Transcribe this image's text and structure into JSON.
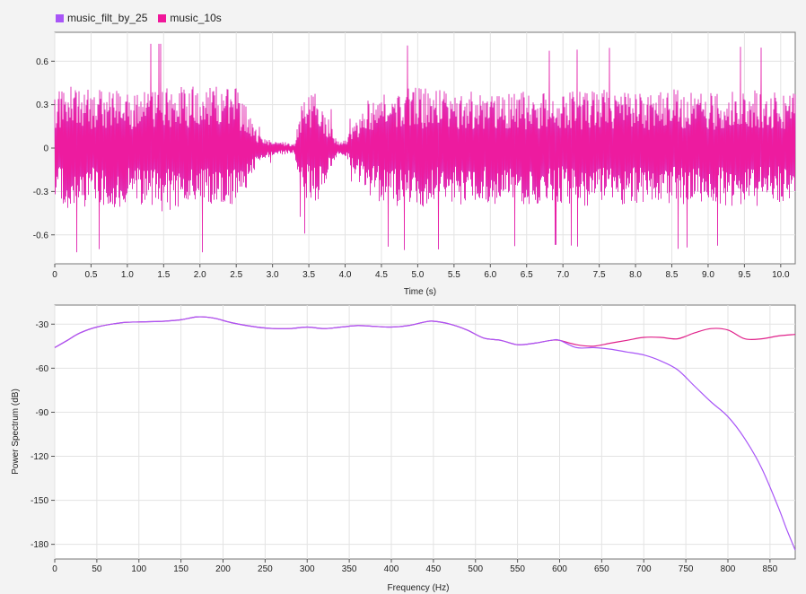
{
  "legend": {
    "items": [
      {
        "label": "music_filt_by_25",
        "color": "#a855f7"
      },
      {
        "label": "music_10s",
        "color": "#f0179a"
      }
    ]
  },
  "chart_data": [
    {
      "type": "line",
      "title": "",
      "xlabel": "Time (s)",
      "ylabel": "",
      "xlim": [
        0,
        10.2
      ],
      "ylim": [
        -0.8,
        0.8
      ],
      "xticks": [
        "0",
        "0.5",
        "1.0",
        "1.5",
        "2.0",
        "2.5",
        "3.0",
        "3.5",
        "4.0",
        "4.5",
        "5.0",
        "5.5",
        "6.0",
        "6.5",
        "7.0",
        "7.5",
        "8.0",
        "8.5",
        "9.0",
        "9.5",
        "10.0"
      ],
      "yticks": [
        "0.6",
        "0.3",
        "0",
        "-0.3",
        "-0.6"
      ],
      "grid": true,
      "legend_position": "top-left",
      "series": [
        {
          "name": "music_filt_by_25",
          "color": "#a855f7",
          "envelope_t": [
            0,
            0.3,
            0.5,
            0.8,
            1.0,
            1.2,
            1.5,
            1.8,
            2.0,
            2.3,
            2.5,
            2.7,
            2.8,
            3.0,
            3.3,
            3.4,
            3.6,
            3.8,
            3.9,
            4.0,
            4.3,
            4.6,
            5.0,
            5.5,
            6.0,
            6.5,
            7.0,
            7.5,
            8.0,
            8.5,
            9.0,
            9.5,
            10.0,
            10.2
          ],
          "envelope_amp": [
            0.35,
            0.4,
            0.36,
            0.38,
            0.36,
            0.37,
            0.4,
            0.38,
            0.4,
            0.38,
            0.4,
            0.2,
            0.08,
            0.05,
            0.03,
            0.3,
            0.35,
            0.15,
            0.04,
            0.05,
            0.3,
            0.36,
            0.38,
            0.36,
            0.35,
            0.36,
            0.35,
            0.37,
            0.35,
            0.37,
            0.35,
            0.37,
            0.36,
            0.36
          ]
        },
        {
          "name": "music_10s",
          "color": "#f0179a",
          "envelope_t": [
            0,
            0.3,
            0.5,
            0.8,
            1.0,
            1.2,
            1.5,
            1.8,
            2.0,
            2.3,
            2.5,
            2.7,
            2.8,
            3.0,
            3.3,
            3.4,
            3.6,
            3.8,
            3.9,
            4.0,
            4.3,
            4.6,
            5.0,
            5.5,
            6.0,
            6.5,
            7.0,
            7.5,
            8.0,
            8.5,
            9.0,
            9.5,
            10.0,
            10.2
          ],
          "envelope_amp": [
            0.35,
            0.4,
            0.36,
            0.38,
            0.36,
            0.37,
            0.4,
            0.38,
            0.4,
            0.38,
            0.4,
            0.2,
            0.08,
            0.05,
            0.03,
            0.3,
            0.35,
            0.15,
            0.04,
            0.05,
            0.3,
            0.36,
            0.38,
            0.36,
            0.35,
            0.36,
            0.35,
            0.37,
            0.35,
            0.37,
            0.35,
            0.37,
            0.36,
            0.36
          ]
        }
      ]
    },
    {
      "type": "line",
      "title": "",
      "xlabel": "Frequency (Hz)",
      "ylabel": "Power Spectrum (dB)",
      "xlim": [
        0,
        880
      ],
      "ylim": [
        -190,
        -17
      ],
      "xticks": [
        "0",
        "50",
        "100",
        "150",
        "200",
        "250",
        "300",
        "350",
        "400",
        "450",
        "500",
        "550",
        "600",
        "650",
        "700",
        "750",
        "800",
        "850"
      ],
      "yticks": [
        "-30",
        "-60",
        "-90",
        "-120",
        "-150",
        "-180"
      ],
      "grid": true,
      "series": [
        {
          "name": "music_10s",
          "color": "#e0218a",
          "x": [
            0,
            15,
            30,
            50,
            80,
            100,
            130,
            150,
            170,
            190,
            210,
            240,
            260,
            280,
            300,
            320,
            340,
            360,
            380,
            400,
            420,
            440,
            450,
            470,
            490,
            510,
            530,
            550,
            570,
            590,
            600,
            620,
            640,
            660,
            680,
            700,
            720,
            740,
            760,
            780,
            800,
            820,
            840,
            860,
            880
          ],
          "y": [
            -46,
            -41,
            -36,
            -32,
            -29,
            -28.5,
            -28,
            -27,
            -25,
            -26,
            -29,
            -32,
            -33,
            -33,
            -32,
            -33,
            -32,
            -31,
            -31.5,
            -32,
            -31,
            -28.5,
            -28,
            -30,
            -34,
            -39.5,
            -41,
            -44,
            -43,
            -41,
            -41,
            -44,
            -45,
            -43,
            -41,
            -39,
            -39,
            -40,
            -36,
            -33,
            -34,
            -40,
            -40,
            -38,
            -37
          ]
        },
        {
          "name": "music_filt_by_25",
          "color": "#a855f7",
          "x": [
            0,
            15,
            30,
            50,
            80,
            100,
            130,
            150,
            170,
            190,
            210,
            240,
            260,
            280,
            300,
            320,
            340,
            360,
            380,
            400,
            420,
            440,
            450,
            470,
            490,
            510,
            530,
            550,
            570,
            590,
            600,
            620,
            640,
            660,
            680,
            700,
            720,
            740,
            760,
            780,
            800,
            820,
            840,
            860,
            870,
            880
          ],
          "y": [
            -46,
            -41,
            -36,
            -32,
            -29,
            -28.5,
            -28,
            -27,
            -25,
            -26,
            -29,
            -32,
            -33,
            -33,
            -32,
            -33,
            -32,
            -31,
            -31.5,
            -32,
            -31,
            -28.5,
            -28,
            -30,
            -34,
            -39.5,
            -41,
            -44,
            -43,
            -41,
            -41,
            -46,
            -46,
            -47,
            -49,
            -51,
            -55,
            -61,
            -72,
            -83,
            -93,
            -108,
            -128,
            -155,
            -170,
            -184
          ]
        }
      ]
    }
  ]
}
